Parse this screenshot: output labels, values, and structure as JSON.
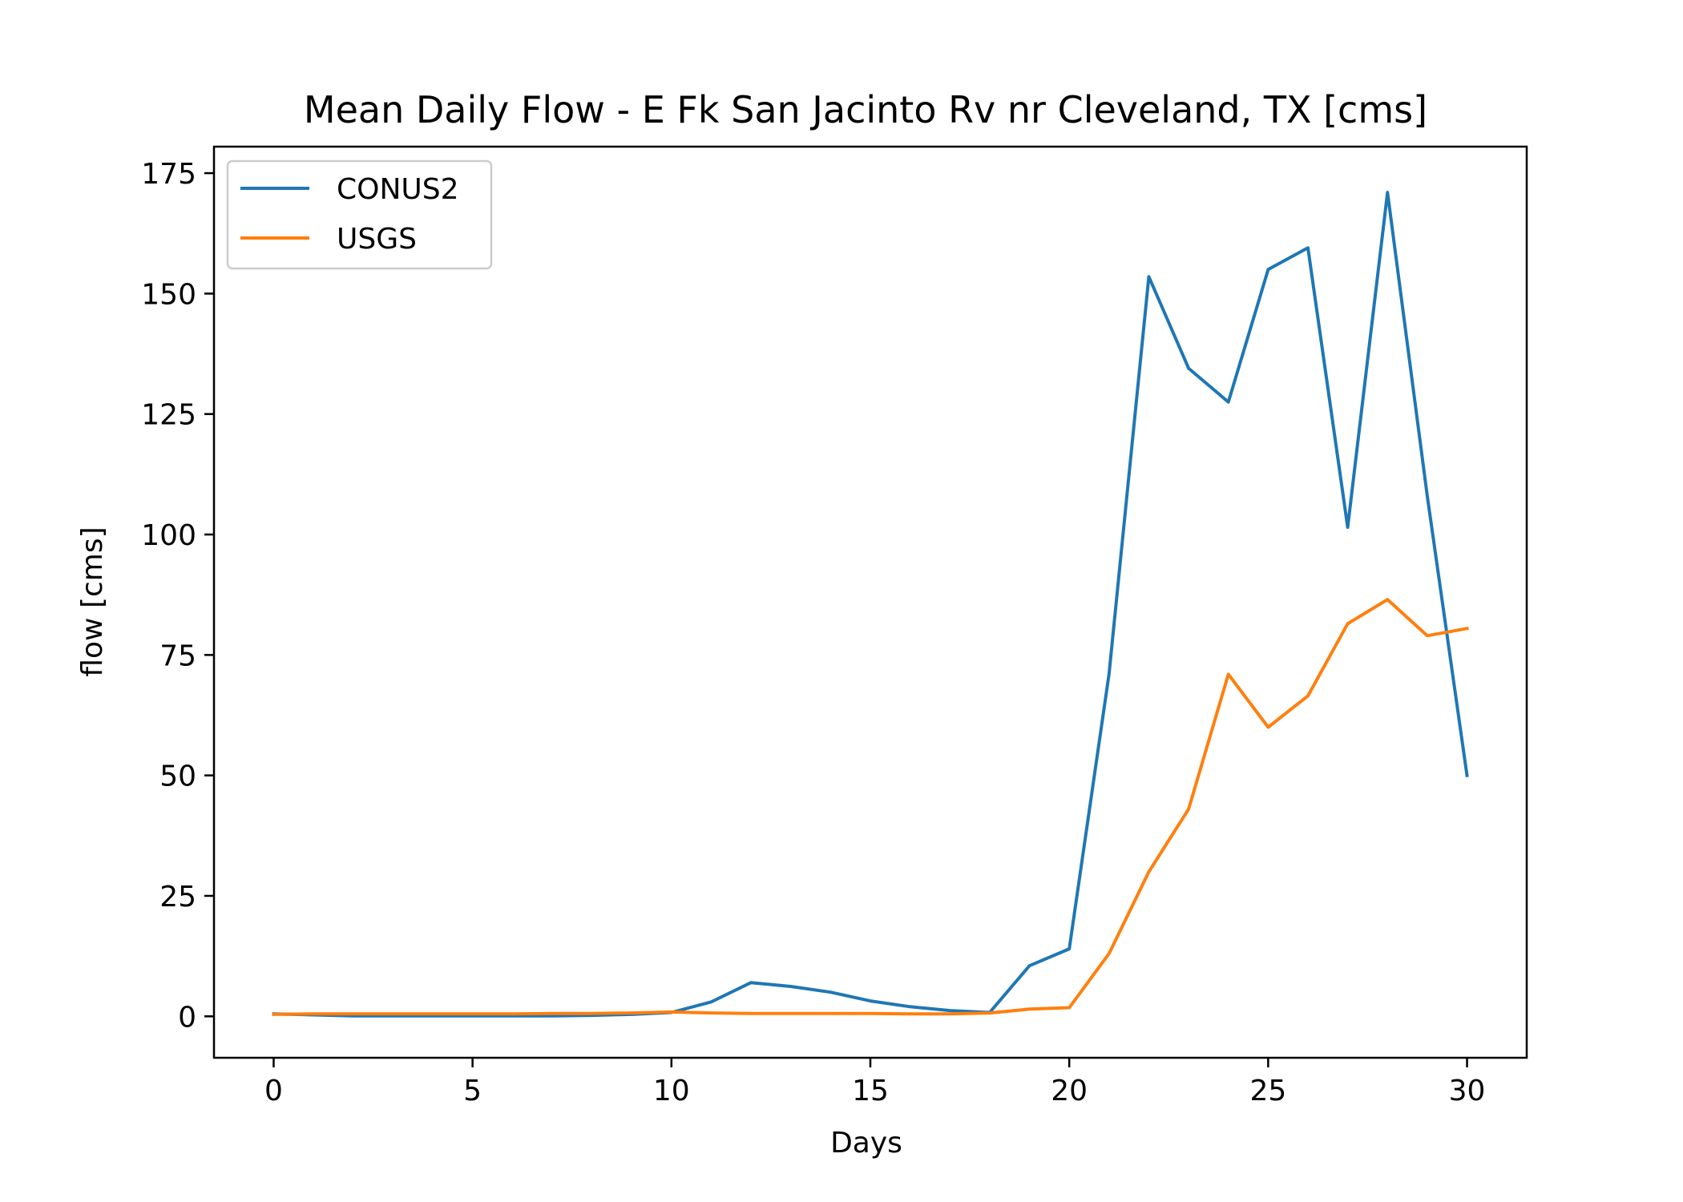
{
  "chart_data": {
    "type": "line",
    "title": "Mean Daily Flow - E Fk San Jacinto Rv nr Cleveland, TX [cms]",
    "xlabel": "Days",
    "ylabel": "flow [cms]",
    "xlim": [
      -1.5,
      31.5
    ],
    "ylim": [
      -8.6,
      180.5
    ],
    "xticks": [
      0,
      5,
      10,
      15,
      20,
      25,
      30
    ],
    "yticks": [
      0,
      25,
      50,
      75,
      100,
      125,
      150,
      175
    ],
    "grid": false,
    "legend_position": "upper-left",
    "x": [
      0,
      1,
      2,
      3,
      4,
      5,
      6,
      7,
      8,
      9,
      10,
      11,
      12,
      13,
      14,
      15,
      16,
      17,
      18,
      19,
      20,
      21,
      22,
      23,
      24,
      25,
      26,
      27,
      28,
      29,
      30
    ],
    "series": [
      {
        "name": "CONUS2",
        "color": "#1f77b4",
        "values": [
          0.5,
          0.3,
          0.1,
          0.1,
          0.1,
          0.1,
          0.1,
          0.1,
          0.2,
          0.4,
          0.8,
          3.0,
          7.0,
          6.2,
          5.0,
          3.2,
          2.0,
          1.2,
          0.8,
          10.5,
          14.0,
          71.0,
          153.5,
          134.5,
          127.5,
          155.0,
          159.5,
          101.5,
          171.0,
          108.0,
          50.0
        ]
      },
      {
        "name": "USGS",
        "color": "#ff7f0e",
        "values": [
          0.4,
          0.5,
          0.5,
          0.5,
          0.5,
          0.5,
          0.5,
          0.6,
          0.6,
          0.7,
          0.9,
          0.7,
          0.6,
          0.6,
          0.6,
          0.6,
          0.5,
          0.5,
          0.7,
          1.5,
          1.8,
          13.0,
          30.0,
          43.0,
          71.0,
          60.0,
          66.5,
          81.5,
          86.5,
          79.0,
          80.5
        ]
      }
    ]
  }
}
